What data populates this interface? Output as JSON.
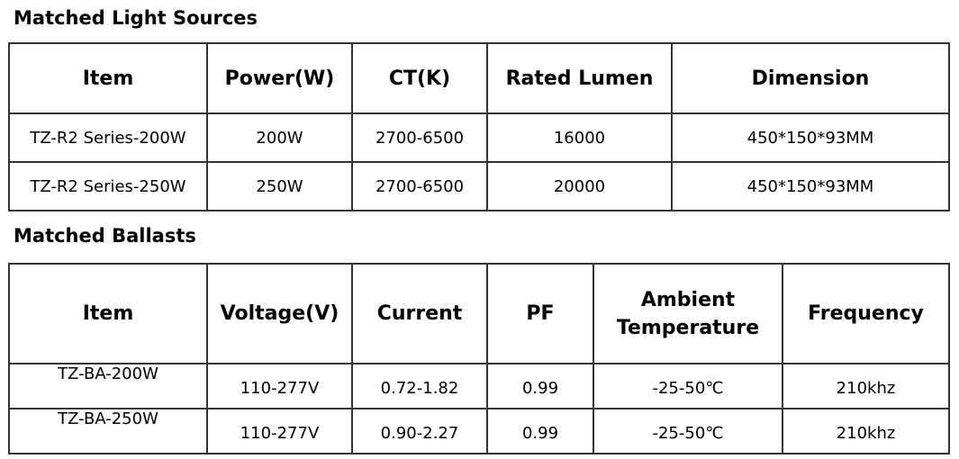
{
  "sections": [
    {
      "title": "Matched Light Sources",
      "table": {
        "header": [
          "Item",
          "Power(W)",
          "CT(K)",
          "Rated Lumen",
          "Dimension"
        ],
        "rows": [
          [
            "TZ-R2 Series-200W",
            "200W",
            "2700-6500",
            "16000",
            "450*150*93MM"
          ],
          [
            "TZ-R2 Series-250W",
            "250W",
            "2700-6500",
            "20000",
            "450*150*93MM"
          ]
        ]
      }
    },
    {
      "title": "Matched Ballasts",
      "table": {
        "header": [
          "Item",
          "Voltage(V)",
          "Current",
          "PF",
          "Ambient Temperature",
          "Frequency"
        ],
        "rows": [
          [
            "TZ-BA-200W",
            "110-277V",
            "0.72-1.82",
            "0.99",
            "-25-50℃",
            "210khz"
          ],
          [
            "TZ-BA-250W",
            "110-277V",
            "0.90-2.27",
            "0.99",
            "-25-50℃",
            "210khz"
          ]
        ]
      }
    }
  ]
}
